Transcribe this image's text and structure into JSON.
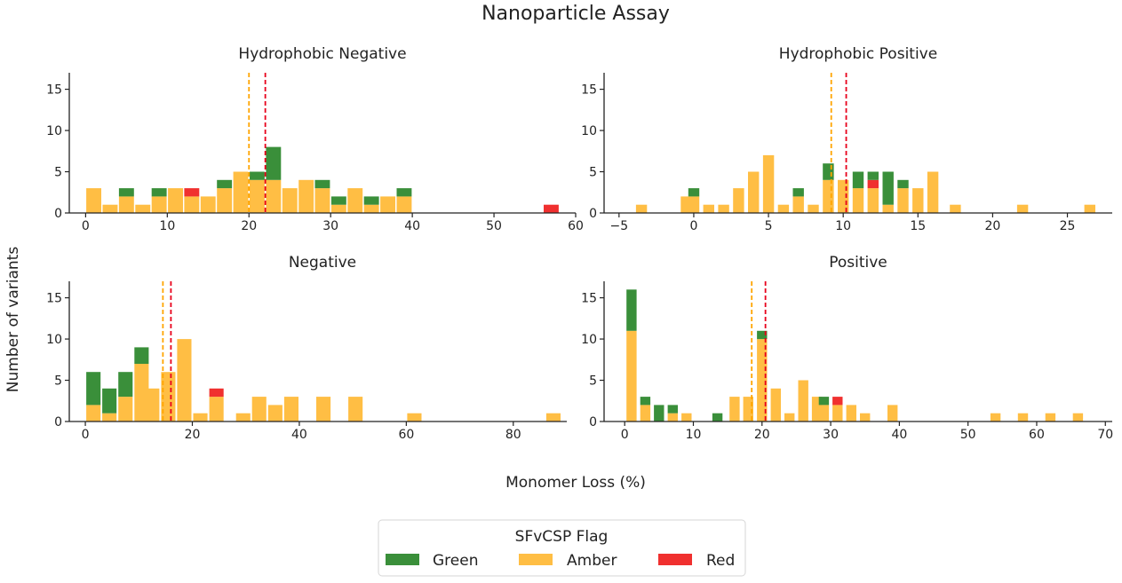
{
  "chart_data": {
    "type": "bar",
    "title": "Nanoparticle Assay",
    "xlabel": "Monomer Loss (%)",
    "ylabel": "Number of variants",
    "colors": {
      "Green": "#3a8f3a",
      "Amber": "#ffbe44",
      "Red": "#f0302f",
      "amber_line": "#ffa500",
      "red_line": "#e8001c"
    },
    "legend": {
      "title": "SFvCSP Flag",
      "placement": "bottom-center",
      "entries": [
        {
          "label": "Green",
          "color": "#3a8f3a"
        },
        {
          "label": "Amber",
          "color": "#ffbe44"
        },
        {
          "label": "Red",
          "color": "#f0302f"
        }
      ]
    },
    "panels": [
      {
        "title": "Hydrophobic Negative",
        "xlim": [
          -2,
          60
        ],
        "ylim": [
          0,
          17
        ],
        "xticks": [
          0,
          10,
          20,
          30,
          40,
          50,
          60
        ],
        "yticks": [
          0,
          5,
          10,
          15
        ],
        "bin_width": 2,
        "amber_line": 20.0,
        "red_line": 22.0,
        "bars": [
          {
            "x": 1,
            "green": 0,
            "amber": 3,
            "red": 0
          },
          {
            "x": 3,
            "green": 0,
            "amber": 1,
            "red": 0
          },
          {
            "x": 5,
            "green": 1,
            "amber": 2,
            "red": 0
          },
          {
            "x": 7,
            "green": 0,
            "amber": 1,
            "red": 0
          },
          {
            "x": 9,
            "green": 1,
            "amber": 2,
            "red": 0
          },
          {
            "x": 11,
            "green": 0,
            "amber": 3,
            "red": 0
          },
          {
            "x": 13,
            "green": 0,
            "amber": 2,
            "red": 1
          },
          {
            "x": 15,
            "green": 0,
            "amber": 2,
            "red": 0
          },
          {
            "x": 17,
            "green": 1,
            "amber": 3,
            "red": 0
          },
          {
            "x": 19,
            "green": 0,
            "amber": 5,
            "red": 0
          },
          {
            "x": 21,
            "green": 1,
            "amber": 4,
            "red": 0
          },
          {
            "x": 23,
            "green": 4,
            "amber": 4,
            "red": 0
          },
          {
            "x": 25,
            "green": 0,
            "amber": 3,
            "red": 0
          },
          {
            "x": 27,
            "green": 0,
            "amber": 4,
            "red": 0
          },
          {
            "x": 29,
            "green": 1,
            "amber": 3,
            "red": 0
          },
          {
            "x": 31,
            "green": 1,
            "amber": 1,
            "red": 0
          },
          {
            "x": 33,
            "green": 0,
            "amber": 3,
            "red": 0
          },
          {
            "x": 35,
            "green": 1,
            "amber": 1,
            "red": 0
          },
          {
            "x": 37,
            "green": 0,
            "amber": 2,
            "red": 0
          },
          {
            "x": 39,
            "green": 1,
            "amber": 2,
            "red": 0
          },
          {
            "x": 57,
            "green": 0,
            "amber": 0,
            "red": 1
          }
        ]
      },
      {
        "title": "Hydrophobic Positive",
        "xlim": [
          -6,
          28
        ],
        "ylim": [
          0,
          17
        ],
        "xticks": [
          -5,
          0,
          5,
          10,
          15,
          20,
          25
        ],
        "yticks": [
          0,
          5,
          10,
          15
        ],
        "bin_width": 0.8,
        "amber_line": 9.2,
        "red_line": 10.2,
        "bars": [
          {
            "x": -3.5,
            "green": 0,
            "amber": 1,
            "red": 0
          },
          {
            "x": -0.5,
            "green": 0,
            "amber": 2,
            "red": 0
          },
          {
            "x": 0,
            "green": 1,
            "amber": 2,
            "red": 0
          },
          {
            "x": 1,
            "green": 0,
            "amber": 1,
            "red": 0
          },
          {
            "x": 2,
            "green": 0,
            "amber": 1,
            "red": 0
          },
          {
            "x": 3,
            "green": 0,
            "amber": 3,
            "red": 0
          },
          {
            "x": 4,
            "green": 0,
            "amber": 5,
            "red": 0
          },
          {
            "x": 5,
            "green": 0,
            "amber": 7,
            "red": 0
          },
          {
            "x": 6,
            "green": 0,
            "amber": 1,
            "red": 0
          },
          {
            "x": 7,
            "green": 1,
            "amber": 2,
            "red": 0
          },
          {
            "x": 8,
            "green": 0,
            "amber": 1,
            "red": 0
          },
          {
            "x": 9,
            "green": 2,
            "amber": 4,
            "red": 0
          },
          {
            "x": 10,
            "green": 0,
            "amber": 4,
            "red": 0
          },
          {
            "x": 11,
            "green": 2,
            "amber": 3,
            "red": 0
          },
          {
            "x": 12,
            "green": 1,
            "amber": 3,
            "red": 1
          },
          {
            "x": 13,
            "green": 4,
            "amber": 1,
            "red": 0
          },
          {
            "x": 14,
            "green": 1,
            "amber": 3,
            "red": 0
          },
          {
            "x": 15,
            "green": 0,
            "amber": 3,
            "red": 0
          },
          {
            "x": 16,
            "green": 0,
            "amber": 5,
            "red": 0
          },
          {
            "x": 17.5,
            "green": 0,
            "amber": 1,
            "red": 0
          },
          {
            "x": 22,
            "green": 0,
            "amber": 1,
            "red": 0
          },
          {
            "x": 26.5,
            "green": 0,
            "amber": 1,
            "red": 0
          }
        ]
      },
      {
        "title": "Negative",
        "xlim": [
          -3,
          90
        ],
        "ylim": [
          0,
          17
        ],
        "xticks": [
          0,
          20,
          40,
          60,
          80
        ],
        "yticks": [
          0,
          5,
          10,
          15
        ],
        "bin_width": 2.9,
        "amber_line": 14.5,
        "red_line": 16.0,
        "bars": [
          {
            "x": 1.5,
            "green": 4,
            "amber": 2,
            "red": 0
          },
          {
            "x": 4.5,
            "green": 3,
            "amber": 1,
            "red": 0
          },
          {
            "x": 7.5,
            "green": 3,
            "amber": 3,
            "red": 0
          },
          {
            "x": 10.5,
            "green": 2,
            "amber": 7,
            "red": 0
          },
          {
            "x": 12.5,
            "green": 0,
            "amber": 4,
            "red": 0
          },
          {
            "x": 15.5,
            "green": 0,
            "amber": 6,
            "red": 0
          },
          {
            "x": 18.5,
            "green": 0,
            "amber": 10,
            "red": 0
          },
          {
            "x": 21.5,
            "green": 0,
            "amber": 1,
            "red": 0
          },
          {
            "x": 24.5,
            "green": 0,
            "amber": 3,
            "red": 1
          },
          {
            "x": 29.5,
            "green": 0,
            "amber": 1,
            "red": 0
          },
          {
            "x": 32.5,
            "green": 0,
            "amber": 3,
            "red": 0
          },
          {
            "x": 35.5,
            "green": 0,
            "amber": 2,
            "red": 0
          },
          {
            "x": 38.5,
            "green": 0,
            "amber": 3,
            "red": 0
          },
          {
            "x": 44.5,
            "green": 0,
            "amber": 3,
            "red": 0
          },
          {
            "x": 50.5,
            "green": 0,
            "amber": 3,
            "red": 0
          },
          {
            "x": 61.5,
            "green": 0,
            "amber": 1,
            "red": 0
          },
          {
            "x": 87.5,
            "green": 0,
            "amber": 1,
            "red": 0
          }
        ]
      },
      {
        "title": "Positive",
        "xlim": [
          -3,
          71
        ],
        "ylim": [
          0,
          17
        ],
        "xticks": [
          0,
          10,
          20,
          30,
          40,
          50,
          60,
          70
        ],
        "yticks": [
          0,
          5,
          10,
          15
        ],
        "bin_width": 1.6,
        "amber_line": 18.5,
        "red_line": 20.5,
        "bars": [
          {
            "x": 1,
            "green": 5,
            "amber": 11,
            "red": 0
          },
          {
            "x": 3,
            "green": 1,
            "amber": 2,
            "red": 0
          },
          {
            "x": 5,
            "green": 2,
            "amber": 0,
            "red": 0
          },
          {
            "x": 7,
            "green": 1,
            "amber": 1,
            "red": 0
          },
          {
            "x": 9,
            "green": 0,
            "amber": 1,
            "red": 0
          },
          {
            "x": 13.5,
            "green": 1,
            "amber": 0,
            "red": 0
          },
          {
            "x": 16,
            "green": 0,
            "amber": 3,
            "red": 0
          },
          {
            "x": 18,
            "green": 0,
            "amber": 3,
            "red": 0
          },
          {
            "x": 20,
            "green": 1,
            "amber": 10,
            "red": 0
          },
          {
            "x": 22,
            "green": 0,
            "amber": 4,
            "red": 0
          },
          {
            "x": 24,
            "green": 0,
            "amber": 1,
            "red": 0
          },
          {
            "x": 26,
            "green": 0,
            "amber": 5,
            "red": 0
          },
          {
            "x": 28,
            "green": 0,
            "amber": 3,
            "red": 0
          },
          {
            "x": 29,
            "green": 1,
            "amber": 2,
            "red": 0
          },
          {
            "x": 31,
            "green": 0,
            "amber": 2,
            "red": 1
          },
          {
            "x": 33,
            "green": 0,
            "amber": 2,
            "red": 0
          },
          {
            "x": 35,
            "green": 0,
            "amber": 1,
            "red": 0
          },
          {
            "x": 39,
            "green": 0,
            "amber": 2,
            "red": 0
          },
          {
            "x": 54,
            "green": 0,
            "amber": 1,
            "red": 0
          },
          {
            "x": 58,
            "green": 0,
            "amber": 1,
            "red": 0
          },
          {
            "x": 62,
            "green": 0,
            "amber": 1,
            "red": 0
          },
          {
            "x": 66,
            "green": 0,
            "amber": 1,
            "red": 0
          }
        ]
      }
    ]
  }
}
